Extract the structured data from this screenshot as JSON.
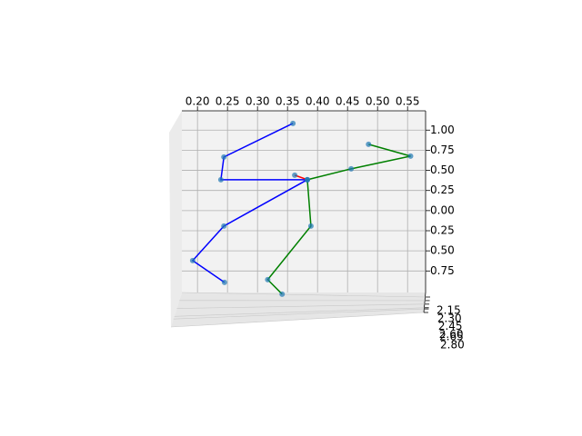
{
  "chart_data": {
    "type": "skeleton3d",
    "xlim": [
      0.174,
      0.58
    ],
    "ylim": [
      -1.24,
      1.04
    ],
    "xticks": [
      {
        "value": 0.2,
        "label": "0.20"
      },
      {
        "value": 0.25,
        "label": "0.25"
      },
      {
        "value": 0.3,
        "label": "0.30"
      },
      {
        "value": 0.35,
        "label": "0.35"
      },
      {
        "value": 0.4,
        "label": "0.40"
      },
      {
        "value": 0.45,
        "label": "0.45"
      },
      {
        "value": 0.5,
        "label": "0.50"
      },
      {
        "value": 0.55,
        "label": "0.55"
      }
    ],
    "yticks": [
      {
        "value": -1.0,
        "label": "1.00"
      },
      {
        "value": -0.75,
        "label": "0.75"
      },
      {
        "value": -0.5,
        "label": "0.50"
      },
      {
        "value": -0.25,
        "label": "0.25"
      },
      {
        "value": 0.0,
        "label": "0.00"
      },
      {
        "value": 0.25,
        "label": "0.25"
      },
      {
        "value": 0.5,
        "label": "0.50"
      },
      {
        "value": 0.75,
        "label": "0.75"
      }
    ],
    "zticks": [
      {
        "value": 2.15,
        "label": "2.15"
      },
      {
        "value": 2.3,
        "label": "2.30"
      },
      {
        "value": 2.45,
        "label": "2.45"
      },
      {
        "value": 2.6,
        "label": "2.60"
      },
      {
        "value": 2.65,
        "label": "2.65"
      },
      {
        "value": 2.8,
        "label": "2.80"
      }
    ],
    "grid": true,
    "marker_color": "#1f77b4",
    "series": [
      {
        "color": "#0000ff",
        "x": [
          0.359,
          0.244,
          0.239,
          0.383,
          0.244,
          0.192,
          0.245
        ],
        "y": [
          -1.084,
          -0.666,
          -0.384,
          -0.384,
          0.192,
          0.621,
          0.892
        ]
      },
      {
        "color": "#008000",
        "x": [
          0.485,
          0.555,
          0.456,
          0.383,
          0.389,
          0.317,
          0.341
        ],
        "y": [
          -0.824,
          -0.677,
          -0.519,
          -0.384,
          0.192,
          0.858,
          1.038
        ]
      },
      {
        "color": "#ff0000",
        "x": [
          0.362,
          0.383
        ],
        "y": [
          -0.44,
          -0.384
        ]
      }
    ]
  }
}
